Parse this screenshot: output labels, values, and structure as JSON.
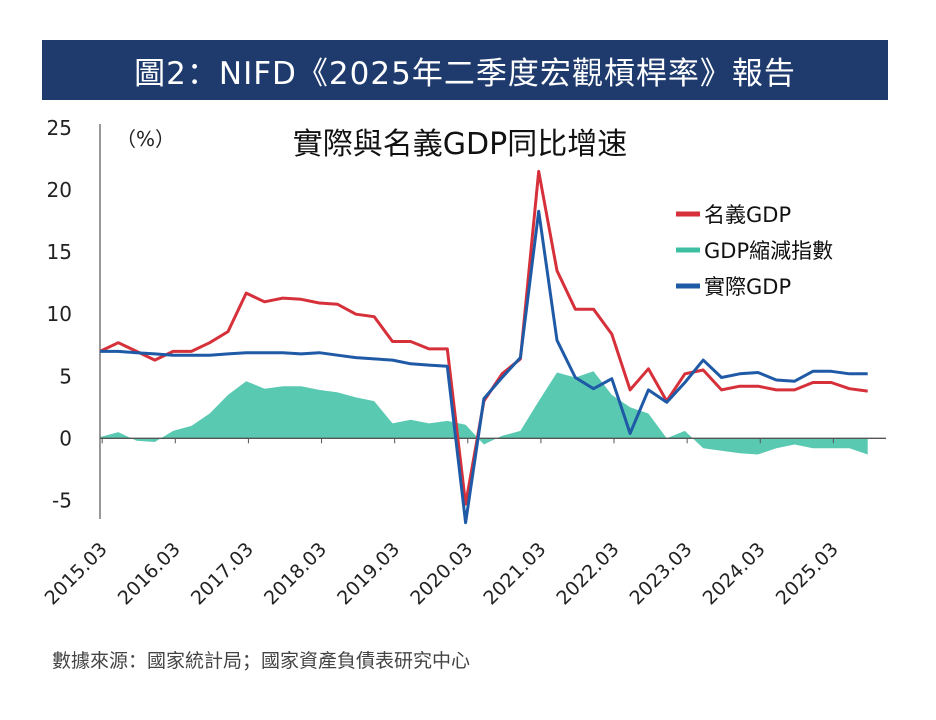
{
  "header": {
    "title": "圖2：NIFD《2025年二季度宏觀槓桿率》報告"
  },
  "footer": {
    "source": "數據來源：國家統計局；國家資產負債表研究中心"
  },
  "chart_data": {
    "type": "line",
    "title": "實際與名義GDP同比增速",
    "ylabel": "（%）",
    "ylim": [
      -6.5,
      25
    ],
    "yticks": [
      25,
      20,
      15,
      10,
      5,
      0,
      -5
    ],
    "xlim": [
      2015.0,
      2025.75
    ],
    "xticks": [
      "2015.03",
      "2016.03",
      "2017.03",
      "2018.03",
      "2019.03",
      "2020.03",
      "2021.03",
      "2022.03",
      "2023.03",
      "2024.03",
      "2025.03"
    ],
    "legend_position": "top-right",
    "series": [
      {
        "name": "名義GDP",
        "kind": "line",
        "color": "#d6303a",
        "x": [
          2015.0,
          2015.25,
          2015.5,
          2015.75,
          2016.0,
          2016.25,
          2016.5,
          2016.75,
          2017.0,
          2017.25,
          2017.5,
          2017.75,
          2018.0,
          2018.25,
          2018.5,
          2018.75,
          2019.0,
          2019.25,
          2019.5,
          2019.75,
          2020.0,
          2020.25,
          2020.5,
          2020.75,
          2021.0,
          2021.25,
          2021.5,
          2021.75,
          2022.0,
          2022.25,
          2022.5,
          2022.75,
          2023.0,
          2023.25,
          2023.5,
          2023.75,
          2024.0,
          2024.25,
          2024.5,
          2024.75,
          2025.0,
          2025.25,
          2025.5
        ],
        "y": [
          7.0,
          7.7,
          7.0,
          6.3,
          7.0,
          7.0,
          7.7,
          8.6,
          11.7,
          11.0,
          11.3,
          11.2,
          10.9,
          10.8,
          10.0,
          9.8,
          7.8,
          7.8,
          7.2,
          7.2,
          -5.3,
          3.0,
          5.2,
          6.4,
          21.5,
          13.5,
          10.4,
          10.4,
          8.4,
          3.9,
          5.6,
          3.0,
          5.2,
          5.5,
          3.9,
          4.2,
          4.2,
          3.9,
          3.9,
          4.5,
          4.5,
          4.0,
          3.8
        ]
      },
      {
        "name": "GDP縮減指數",
        "kind": "area",
        "color": "#3dbfa4",
        "x": [
          2015.0,
          2015.25,
          2015.5,
          2015.75,
          2016.0,
          2016.25,
          2016.5,
          2016.75,
          2017.0,
          2017.25,
          2017.5,
          2017.75,
          2018.0,
          2018.25,
          2018.5,
          2018.75,
          2019.0,
          2019.25,
          2019.5,
          2019.75,
          2020.0,
          2020.25,
          2020.5,
          2020.75,
          2021.0,
          2021.25,
          2021.5,
          2021.75,
          2022.0,
          2022.25,
          2022.5,
          2022.75,
          2023.0,
          2023.25,
          2023.5,
          2023.75,
          2024.0,
          2024.25,
          2024.5,
          2024.75,
          2025.0,
          2025.25,
          2025.5
        ],
        "y": [
          0.1,
          0.5,
          -0.2,
          -0.3,
          0.6,
          1.0,
          2.0,
          3.5,
          4.6,
          4.0,
          4.2,
          4.2,
          3.9,
          3.7,
          3.3,
          3.0,
          1.2,
          1.5,
          1.2,
          1.4,
          1.1,
          -0.5,
          0.2,
          0.6,
          3.0,
          5.3,
          4.9,
          5.4,
          3.5,
          2.5,
          2.0,
          0.0,
          0.6,
          -0.8,
          -1.0,
          -1.2,
          -1.3,
          -0.8,
          -0.5,
          -0.8,
          -0.8,
          -0.8,
          -1.3
        ]
      },
      {
        "name": "實際GDP",
        "kind": "line",
        "color": "#1f5aa6",
        "x": [
          2015.0,
          2015.25,
          2015.5,
          2015.75,
          2016.0,
          2016.25,
          2016.5,
          2016.75,
          2017.0,
          2017.25,
          2017.5,
          2017.75,
          2018.0,
          2018.25,
          2018.5,
          2018.75,
          2019.0,
          2019.25,
          2019.5,
          2019.75,
          2020.0,
          2020.25,
          2020.5,
          2020.75,
          2021.0,
          2021.25,
          2021.5,
          2021.75,
          2022.0,
          2022.25,
          2022.5,
          2022.75,
          2023.0,
          2023.25,
          2023.5,
          2023.75,
          2024.0,
          2024.25,
          2024.5,
          2024.75,
          2025.0,
          2025.25,
          2025.5
        ],
        "y": [
          7.0,
          7.0,
          6.9,
          6.8,
          6.7,
          6.7,
          6.7,
          6.8,
          6.9,
          6.9,
          6.9,
          6.8,
          6.9,
          6.7,
          6.5,
          6.4,
          6.3,
          6.0,
          5.9,
          5.8,
          -6.8,
          3.2,
          4.9,
          6.5,
          18.3,
          7.9,
          4.9,
          4.0,
          4.8,
          0.4,
          3.9,
          2.9,
          4.5,
          6.3,
          4.9,
          5.2,
          5.3,
          4.7,
          4.6,
          5.4,
          5.4,
          5.2,
          5.2
        ]
      }
    ]
  }
}
